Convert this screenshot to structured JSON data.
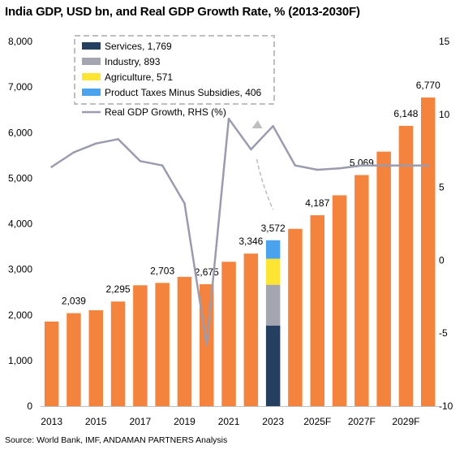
{
  "chart_data": {
    "type": "bar",
    "title": "India GDP, USD bn, and Real GDP Growth Rate, % (2013-2030F)",
    "source": "Source: World Bank, IMF, ANDAMAN PARTNERS Analysis",
    "categories": [
      "2013",
      "2014",
      "2015",
      "2016",
      "2017",
      "2018",
      "2019",
      "2020",
      "2021",
      "2022",
      "2023",
      "2024F",
      "2025F",
      "2026F",
      "2027F",
      "2028F",
      "2029F",
      "2030F"
    ],
    "x_tick_labels": [
      "2013",
      "",
      "2015",
      "",
      "2017",
      "",
      "2019",
      "",
      "2021",
      "",
      "2023",
      "",
      "2025F",
      "",
      "2027F",
      "",
      "2029F",
      ""
    ],
    "gdp_values": [
      1856,
      2039,
      2104,
      2295,
      2651,
      2703,
      2836,
      2675,
      3167,
      3346,
      3572,
      3889,
      4187,
      4625,
      5069,
      5583,
      6148,
      6770
    ],
    "gdp_value_labels": [
      "",
      "2,039",
      "",
      "2,295",
      "",
      "2,703",
      "",
      "2,675",
      "",
      "3,346",
      "3,572",
      "",
      "4,187",
      "",
      "5,069",
      "",
      "6,148",
      "6,770"
    ],
    "gdp_color": "#F4843D",
    "stack_year": "2023",
    "stack": [
      {
        "name": "Services",
        "value": 1769,
        "label": "Services, 1,769",
        "color": "#243F60"
      },
      {
        "name": "Industry",
        "value": 893,
        "label": "Industry, 893",
        "color": "#A5A5B2"
      },
      {
        "name": "Agriculture",
        "value": 571,
        "label": "Agriculture, 571",
        "color": "#FFE533"
      },
      {
        "name": "Product Taxes Minus Subsidies",
        "value": 406,
        "label": "Product Taxes Minus Subsidies, 406",
        "color": "#4AA3EF"
      }
    ],
    "growth_series": {
      "name": "Real GDP Growth, RHS (%)",
      "label": "Real GDP Growth, RHS (%)",
      "color": "#9B9BB0",
      "values": [
        6.4,
        7.4,
        8.0,
        8.3,
        6.8,
        6.5,
        3.9,
        -5.8,
        9.7,
        7.6,
        9.2,
        6.5,
        6.2,
        6.3,
        6.5,
        6.5,
        6.5,
        6.5
      ]
    },
    "y_left": {
      "min": 0,
      "max": 8000,
      "ticks": [
        "0",
        "1,000",
        "2,000",
        "3,000",
        "4,000",
        "5,000",
        "6,000",
        "7,000",
        "8,000"
      ]
    },
    "y_right": {
      "min": -10,
      "max": 15,
      "ticks": [
        "-10",
        "-5",
        "0",
        "5",
        "10",
        "15"
      ]
    },
    "grid": false,
    "legend_placement": "top-left"
  }
}
